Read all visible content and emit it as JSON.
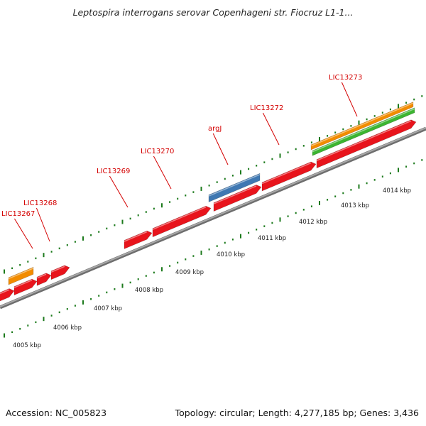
{
  "title": "Leptospira interrogans serovar Copenhageni str. Fiocruz L1-1...",
  "footer": {
    "accession": "Accession: NC_005823",
    "summary": "Topology: circular; Length: 4,277,185 bp; Genes: 3,436"
  },
  "colors": {
    "gene": "#e8141c",
    "orange_feature": "#f28c00",
    "green_feature": "#3cb531",
    "blue_feature": "#3f78b2",
    "backbone": "#8a8a8a",
    "tick": "#1c7a1c",
    "label": "#d40000"
  },
  "scale": {
    "labels": [
      "4005 kbp",
      "4006 kbp",
      "4007 kbp",
      "4008 kbp",
      "4009 kbp",
      "4010 kbp",
      "4011 kbp",
      "4012 kbp",
      "4013 kbp",
      "4014 kbp"
    ]
  },
  "gene_labels": [
    "LIC13267",
    "LIC13268",
    "LIC13269",
    "LIC13270",
    "argJ",
    "LIC13272",
    "LIC13273"
  ]
}
